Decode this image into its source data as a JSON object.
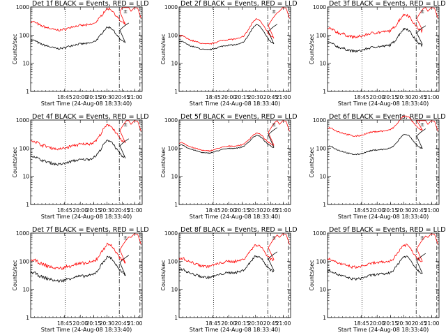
{
  "chart_data": {
    "type": "line",
    "y_scale": "log",
    "ylim": [
      1,
      1000
    ],
    "xlim": [
      "18:33:40",
      "21:11:00"
    ],
    "x_ticks": [
      "18:45",
      "20:00",
      "20:15",
      "20:30",
      "20:45",
      "21:00"
    ],
    "y_ticks": [
      "1",
      "10",
      "100",
      "1000"
    ],
    "ylabel": "Counts/sec",
    "xlabel": "Start Time (24-Aug-08 18:33:40)",
    "legend_mark": "±",
    "colors": {
      "events": "#000000",
      "lld": "#ff0000"
    },
    "panels": [
      {
        "title": "Det 1f BLACK = Events, RED = LLD",
        "ev_base": 50,
        "ev_amp": 1.3,
        "lld_ratio": 4.5,
        "noise": 0.08
      },
      {
        "title": "Det 2f BLACK = Events, RED = LLD",
        "ev_base": 45,
        "ev_amp": 1.6,
        "lld_ratio": 1.6,
        "noise": 0.05
      },
      {
        "title": "Det 3f BLACK = Events, RED = LLD",
        "ev_base": 40,
        "ev_amp": 1.4,
        "lld_ratio": 3.2,
        "noise": 0.1
      },
      {
        "title": "Det 4f BLACK = Events, RED = LLD",
        "ev_base": 40,
        "ev_amp": 1.5,
        "lld_ratio": 3.5,
        "noise": 0.1
      },
      {
        "title": "Det 5f BLACK = Events, RED = LLD",
        "ev_base": 100,
        "ev_amp": 1.0,
        "lld_ratio": 1.2,
        "noise": 0.04
      },
      {
        "title": "Det 6f BLACK = Events, RED = LLD",
        "ev_base": 90,
        "ev_amp": 1.2,
        "lld_ratio": 4.5,
        "noise": 0.05
      },
      {
        "title": "Det 7f BLACK = Events, RED = LLD",
        "ev_base": 30,
        "ev_amp": 1.5,
        "lld_ratio": 2.8,
        "noise": 0.12
      },
      {
        "title": "Det 8f BLACK = Events, RED = LLD",
        "ev_base": 40,
        "ev_amp": 1.3,
        "lld_ratio": 2.5,
        "noise": 0.1
      },
      {
        "title": "Det 9f BLACK = Events, RED = LLD",
        "ev_base": 35,
        "ev_amp": 1.4,
        "lld_ratio": 2.6,
        "noise": 0.1
      }
    ]
  }
}
